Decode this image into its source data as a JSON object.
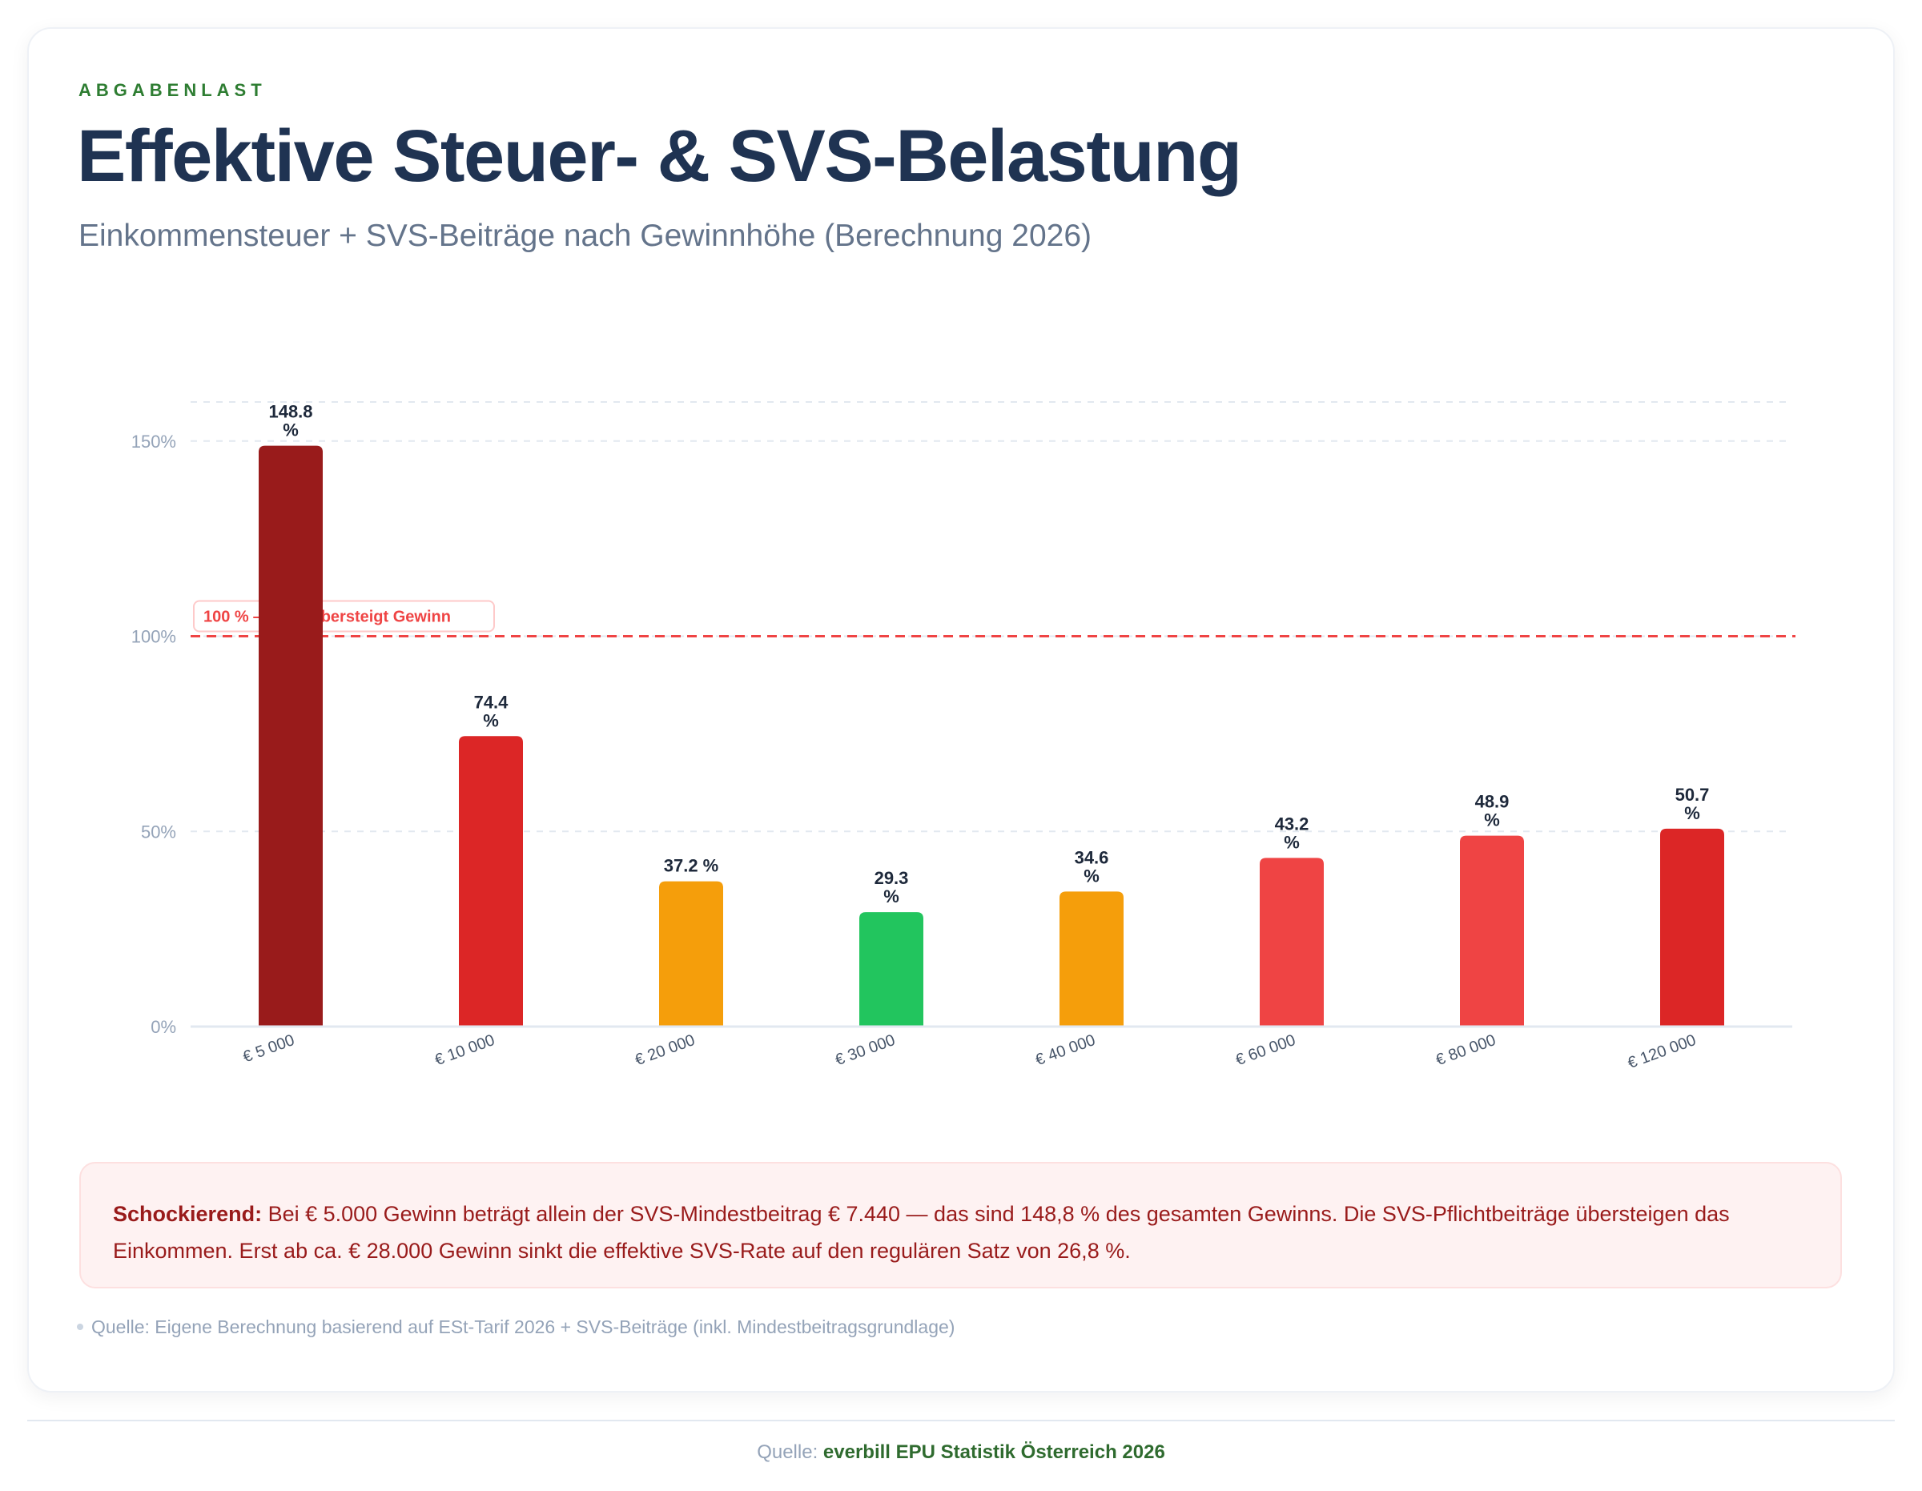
{
  "header": {
    "eyebrow": "ABGABENLAST",
    "title": "Effektive Steuer- & SVS-Belastung",
    "subtitle": "Einkommensteuer + SVS-Beiträge nach Gewinnhöhe (Berechnung 2026)"
  },
  "chart_data": {
    "type": "bar",
    "title": "Effektive Steuer- & SVS-Belastung",
    "xlabel": "",
    "ylabel": "",
    "categories": [
      "€ 5 000",
      "€ 10 000",
      "€ 20 000",
      "€ 30 000",
      "€ 40 000",
      "€ 60 000",
      "€ 80 000",
      "€ 120 000"
    ],
    "values": [
      148.8,
      74.4,
      37.2,
      29.3,
      34.6,
      43.2,
      48.9,
      50.7
    ],
    "data_labels": [
      [
        "148.8",
        "%"
      ],
      [
        "74.4",
        "%"
      ],
      [
        "37.2 %"
      ],
      [
        "29.3",
        "%"
      ],
      [
        "34.6",
        "%"
      ],
      [
        "43.2",
        "%"
      ],
      [
        "48.9",
        "%"
      ],
      [
        "50.7",
        "%"
      ]
    ],
    "bar_colors": [
      "#991b1b",
      "#dc2626",
      "#f59e0b",
      "#22c55e",
      "#f59e0b",
      "#ef4444",
      "#ef4444",
      "#dc2626"
    ],
    "ylim": [
      0,
      160
    ],
    "yticks": [
      0,
      50,
      100,
      150
    ],
    "ytick_labels": [
      "0%",
      "50%",
      "100%",
      "150%"
    ],
    "grid": true,
    "reference_line": {
      "value": 100,
      "label": "100 % — Last übersteigt Gewinn",
      "color": "#ef4444"
    }
  },
  "callout": {
    "lead": "Schockierend:",
    "text": " Bei € 5.000 Gewinn beträgt allein der SVS-Mindestbeitrag € 7.440 — das sind 148,8 % des gesamten Gewinns. Die SVS-Pflichtbeiträge übersteigen das Einkommen. Erst ab ca. € 28.000 Gewinn sinkt die effektive SVS-Rate auf den regulären Satz von 26,8 %."
  },
  "note": "Quelle: Eigene Berechnung basierend auf ESt-Tarif 2026 + SVS-Beiträge (inkl. Mindestbeitragsgrundlage)",
  "footer": {
    "label": "Quelle:",
    "source": "everbill EPU Statistik Österreich 2026"
  },
  "colors": {
    "accent_green": "#2e7d32",
    "title_navy": "#1f3352",
    "alert_red": "#ef4444"
  }
}
